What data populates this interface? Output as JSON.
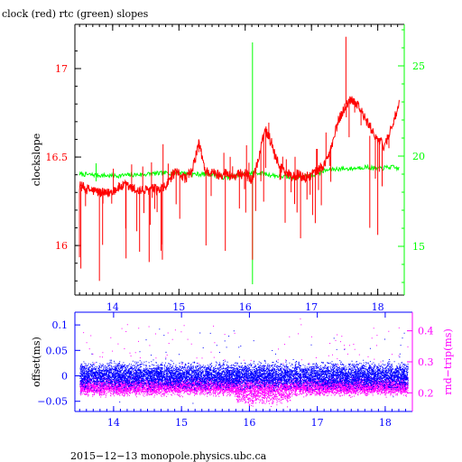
{
  "chart_data": [
    {
      "type": "line",
      "title": "clock (red) rtc (green) slopes",
      "ylabel": "clockslope",
      "xlim": [
        13.43,
        18.4
      ],
      "ylim": [
        15.72,
        17.25
      ],
      "y2lim": [
        12.3,
        27.3
      ],
      "x_ticks": [
        "14",
        "15",
        "16",
        "17",
        "18"
      ],
      "y_ticks": [
        "16",
        "16.5",
        "17"
      ],
      "y2_ticks": [
        "15",
        "20",
        "25"
      ],
      "colors": {
        "clock": "#ff0000",
        "rtc": "#00ff00",
        "axis": "#000000"
      },
      "series": [
        {
          "name": "clock",
          "axis": "left",
          "x": [
            13.5,
            13.6,
            13.7,
            13.8,
            13.9,
            14.0,
            14.1,
            14.2,
            14.3,
            14.4,
            14.5,
            14.6,
            14.7,
            14.8,
            14.9,
            15.0,
            15.1,
            15.2,
            15.3,
            15.4,
            15.5,
            15.6,
            15.7,
            15.8,
            15.9,
            16.0,
            16.1,
            16.2,
            16.3,
            16.4,
            16.5,
            16.6,
            16.7,
            16.8,
            16.9,
            17.0,
            17.1,
            17.2,
            17.3,
            17.4,
            17.5,
            17.6,
            17.7,
            17.8,
            17.9,
            18.0,
            18.1,
            18.2,
            18.33
          ],
          "y": [
            16.34,
            16.32,
            16.31,
            16.3,
            16.29,
            16.31,
            16.33,
            16.34,
            16.32,
            16.31,
            16.31,
            16.32,
            16.31,
            16.33,
            16.4,
            16.41,
            16.38,
            16.42,
            16.58,
            16.42,
            16.41,
            16.4,
            16.41,
            16.39,
            16.4,
            16.41,
            16.37,
            16.48,
            16.66,
            16.58,
            16.46,
            16.42,
            16.39,
            16.4,
            16.38,
            16.4,
            16.43,
            16.46,
            16.55,
            16.7,
            16.78,
            16.83,
            16.8,
            16.72,
            16.66,
            16.6,
            16.56,
            16.66,
            16.8
          ]
        },
        {
          "name": "rtc",
          "axis": "right",
          "x": [
            13.5,
            14.0,
            14.5,
            15.0,
            15.2,
            15.5,
            15.7,
            16.0,
            16.15,
            16.3,
            16.5,
            16.7,
            17.0,
            17.2,
            17.4,
            17.6,
            17.8,
            18.0,
            18.2,
            18.33
          ],
          "y": [
            19.0,
            18.9,
            19.0,
            19.1,
            19.0,
            19.0,
            18.8,
            19.0,
            19.1,
            19.0,
            18.9,
            18.8,
            18.9,
            19.2,
            19.3,
            19.3,
            19.4,
            19.3,
            19.4,
            19.3
          ]
        }
      ]
    },
    {
      "type": "scatter",
      "ylabel": "offset(ms)",
      "y2label": "rnd−trip(ms)",
      "xlim": [
        13.43,
        18.4
      ],
      "ylim": [
        -0.07,
        0.125
      ],
      "y2lim": [
        0.14,
        0.46
      ],
      "x_ticks": [
        "14",
        "15",
        "16",
        "17",
        "18"
      ],
      "y_ticks": [
        "−0.05",
        "0",
        "0.05",
        "0.1"
      ],
      "y2_ticks": [
        "0.2",
        "0.3",
        "0.4"
      ],
      "colors": {
        "offset": "#0000ff",
        "rnd_trip": "#ff00ff",
        "axis": "#0000ff",
        "axis2": "#ff00ff"
      },
      "series": [
        {
          "name": "offset",
          "axis": "left",
          "center": 0.0,
          "spread": 0.022
        },
        {
          "name": "rnd_trip",
          "axis": "right",
          "center": 0.22,
          "spread": 0.025
        }
      ]
    }
  ],
  "footer": "2015−12−13  monopole.physics.ubc.ca"
}
